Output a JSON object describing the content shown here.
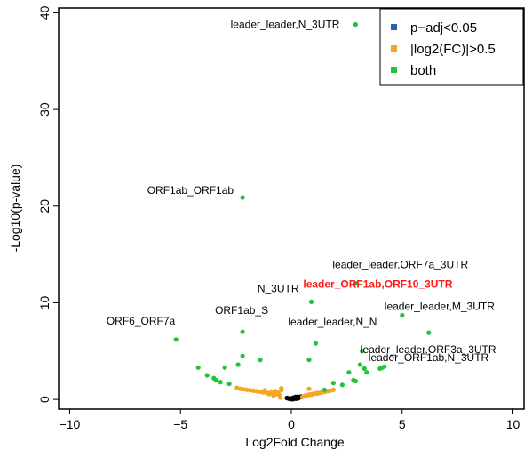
{
  "chart_data": {
    "type": "scatter",
    "title": "",
    "xlabel": "Log2Fold Change",
    "ylabel": "-Log10(p-value)",
    "xlim": [
      -10.5,
      10.5
    ],
    "ylim": [
      -1,
      40.5
    ],
    "xticks": [
      {
        "value": -10,
        "label": "−10"
      },
      {
        "value": -5,
        "label": "−5"
      },
      {
        "value": 0,
        "label": "0"
      },
      {
        "value": 5,
        "label": "5"
      },
      {
        "value": 10,
        "label": "10"
      }
    ],
    "yticks": [
      {
        "value": 0,
        "label": "0"
      },
      {
        "value": 10,
        "label": "10"
      },
      {
        "value": 20,
        "label": "20"
      },
      {
        "value": 30,
        "label": "30"
      },
      {
        "value": 40,
        "label": "40"
      }
    ],
    "grid": false,
    "legend": {
      "position": "top-right",
      "entries": [
        {
          "label": "p−adj<0.05",
          "color": "#2b5fb3"
        },
        {
          "label": "|log2(FC)|>0.5",
          "color": "#f5a623"
        },
        {
          "label": "both",
          "color": "#22c33a"
        }
      ]
    },
    "series": [
      {
        "color": "#000000",
        "points": [
          [
            0.05,
            0.02
          ],
          [
            0.1,
            0.05
          ],
          [
            0.15,
            0.1
          ],
          [
            0.2,
            0.12
          ],
          [
            0.25,
            0.18
          ],
          [
            0.3,
            0.2
          ],
          [
            0.35,
            0.22
          ],
          [
            0.4,
            0.25
          ],
          [
            -0.05,
            0.05
          ],
          [
            -0.1,
            0.08
          ],
          [
            -0.15,
            0.12
          ],
          [
            0.0,
            0.1
          ],
          [
            0.12,
            0.15
          ],
          [
            0.22,
            0.08
          ],
          [
            0.32,
            0.12
          ],
          [
            0.45,
            0.3
          ],
          [
            0.08,
            0.18
          ],
          [
            -0.2,
            0.15
          ],
          [
            0.18,
            0.25
          ],
          [
            0.28,
            0.28
          ]
        ]
      },
      {
        "color": "#f5a623",
        "points": [
          [
            0.55,
            0.3
          ],
          [
            0.65,
            0.4
          ],
          [
            0.75,
            0.45
          ],
          [
            0.85,
            0.5
          ],
          [
            0.95,
            0.55
          ],
          [
            1.05,
            0.6
          ],
          [
            1.15,
            0.65
          ],
          [
            1.3,
            0.7
          ],
          [
            1.45,
            0.8
          ],
          [
            1.6,
            0.85
          ],
          [
            1.75,
            0.9
          ],
          [
            1.9,
            1.0
          ],
          [
            0.6,
            0.35
          ],
          [
            0.7,
            0.42
          ],
          [
            0.8,
            0.48
          ],
          [
            0.9,
            0.52
          ],
          [
            1.0,
            0.58
          ],
          [
            1.2,
            0.62
          ],
          [
            1.35,
            0.72
          ],
          [
            1.5,
            0.78
          ],
          [
            1.7,
            0.88
          ],
          [
            0.8,
            1.1
          ],
          [
            0.5,
            0.25
          ],
          [
            -0.55,
            0.5
          ],
          [
            -0.65,
            0.55
          ],
          [
            -0.75,
            0.6
          ],
          [
            -0.85,
            0.62
          ],
          [
            -0.95,
            0.65
          ],
          [
            -1.1,
            0.68
          ],
          [
            -1.25,
            0.72
          ],
          [
            -1.4,
            0.8
          ],
          [
            -1.55,
            0.85
          ],
          [
            -1.7,
            0.9
          ],
          [
            -1.85,
            0.95
          ],
          [
            -2.0,
            1.0
          ],
          [
            -2.15,
            1.05
          ],
          [
            -2.3,
            1.1
          ],
          [
            -2.45,
            1.2
          ],
          [
            -0.7,
            0.85
          ],
          [
            -0.9,
            0.8
          ],
          [
            -1.0,
            0.55
          ],
          [
            -0.6,
            0.7
          ],
          [
            -0.5,
            0.2
          ],
          [
            -0.45,
            0.95
          ],
          [
            -0.45,
            1.15
          ],
          [
            -0.8,
            0.4
          ],
          [
            -1.2,
            0.95
          ]
        ]
      },
      {
        "color": "#22c33a",
        "points": [
          [
            2.9,
            38.8
          ],
          [
            -2.2,
            20.9
          ],
          [
            2.9,
            12.0
          ],
          [
            0.9,
            10.1
          ],
          [
            5.0,
            8.7
          ],
          [
            -2.2,
            7.0
          ],
          [
            6.2,
            6.9
          ],
          [
            -5.2,
            6.2
          ],
          [
            1.1,
            5.8
          ],
          [
            3.2,
            5.0
          ],
          [
            -2.2,
            4.5
          ],
          [
            -1.4,
            4.1
          ],
          [
            0.8,
            4.1
          ],
          [
            -4.2,
            3.3
          ],
          [
            -2.4,
            3.6
          ],
          [
            -3.0,
            3.3
          ],
          [
            3.1,
            3.6
          ],
          [
            4.2,
            3.4
          ],
          [
            4.1,
            3.3
          ],
          [
            3.3,
            3.2
          ],
          [
            -3.8,
            2.5
          ],
          [
            -3.5,
            2.2
          ],
          [
            -3.4,
            2.0
          ],
          [
            2.6,
            2.8
          ],
          [
            2.8,
            2.0
          ],
          [
            2.9,
            1.9
          ],
          [
            3.4,
            2.8
          ],
          [
            4.0,
            3.2
          ],
          [
            2.3,
            1.5
          ],
          [
            1.5,
            1.0
          ],
          [
            -3.2,
            1.8
          ],
          [
            1.9,
            1.7
          ],
          [
            -2.8,
            1.6
          ]
        ]
      }
    ],
    "annotations": [
      {
        "text": "leader_leader,N_3UTR",
        "x": 2.9,
        "y": 38.8,
        "anchor": "end",
        "dx": -18,
        "dy": 4,
        "highlight": false
      },
      {
        "text": "ORF1ab_ORF1ab",
        "x": -2.2,
        "y": 20.9,
        "anchor": "end",
        "dx": -10,
        "dy": -4,
        "highlight": false
      },
      {
        "text": "leader_leader,ORF7a_3UTR",
        "x": 2.9,
        "y": 12.0,
        "anchor": "start",
        "dx": -26,
        "dy": -17,
        "highlight": false
      },
      {
        "text": "N_3UTR",
        "x": 0.9,
        "y": 10.1,
        "anchor": "end",
        "dx": -14,
        "dy": -11,
        "highlight": false
      },
      {
        "text": "leader_ORF1ab,ORF10_3UTR",
        "x": 2.9,
        "y": 11.0,
        "anchor": "middle",
        "dx": 25,
        "dy": -6,
        "highlight": true
      },
      {
        "text": "leader_leader,M_3UTR",
        "x": 5.0,
        "y": 8.7,
        "anchor": "start",
        "dx": -20,
        "dy": -6,
        "highlight": false
      },
      {
        "text": "ORF1ab_S",
        "x": -2.2,
        "y": 7.0,
        "anchor": "middle",
        "dx": -1,
        "dy": -20,
        "highlight": false
      },
      {
        "text": "leader_leader,N_N",
        "x": 1.1,
        "y": 5.8,
        "anchor": "start",
        "dx": -31,
        "dy": -20,
        "highlight": false
      },
      {
        "text": "ORF6_ORF7a",
        "x": -5.2,
        "y": 6.2,
        "anchor": "end",
        "dx": -1,
        "dy": -17,
        "highlight": false
      },
      {
        "text": "leader_leader,ORF3a_3UTR",
        "x": 3.2,
        "y": 5.0,
        "anchor": "start",
        "dx": -2,
        "dy": 2,
        "highlight": false
      },
      {
        "text": "leader_ORF1ab,N_3UTR",
        "x": 4.2,
        "y": 3.4,
        "anchor": "start",
        "dx": -18,
        "dy": -6,
        "highlight": false
      }
    ]
  }
}
